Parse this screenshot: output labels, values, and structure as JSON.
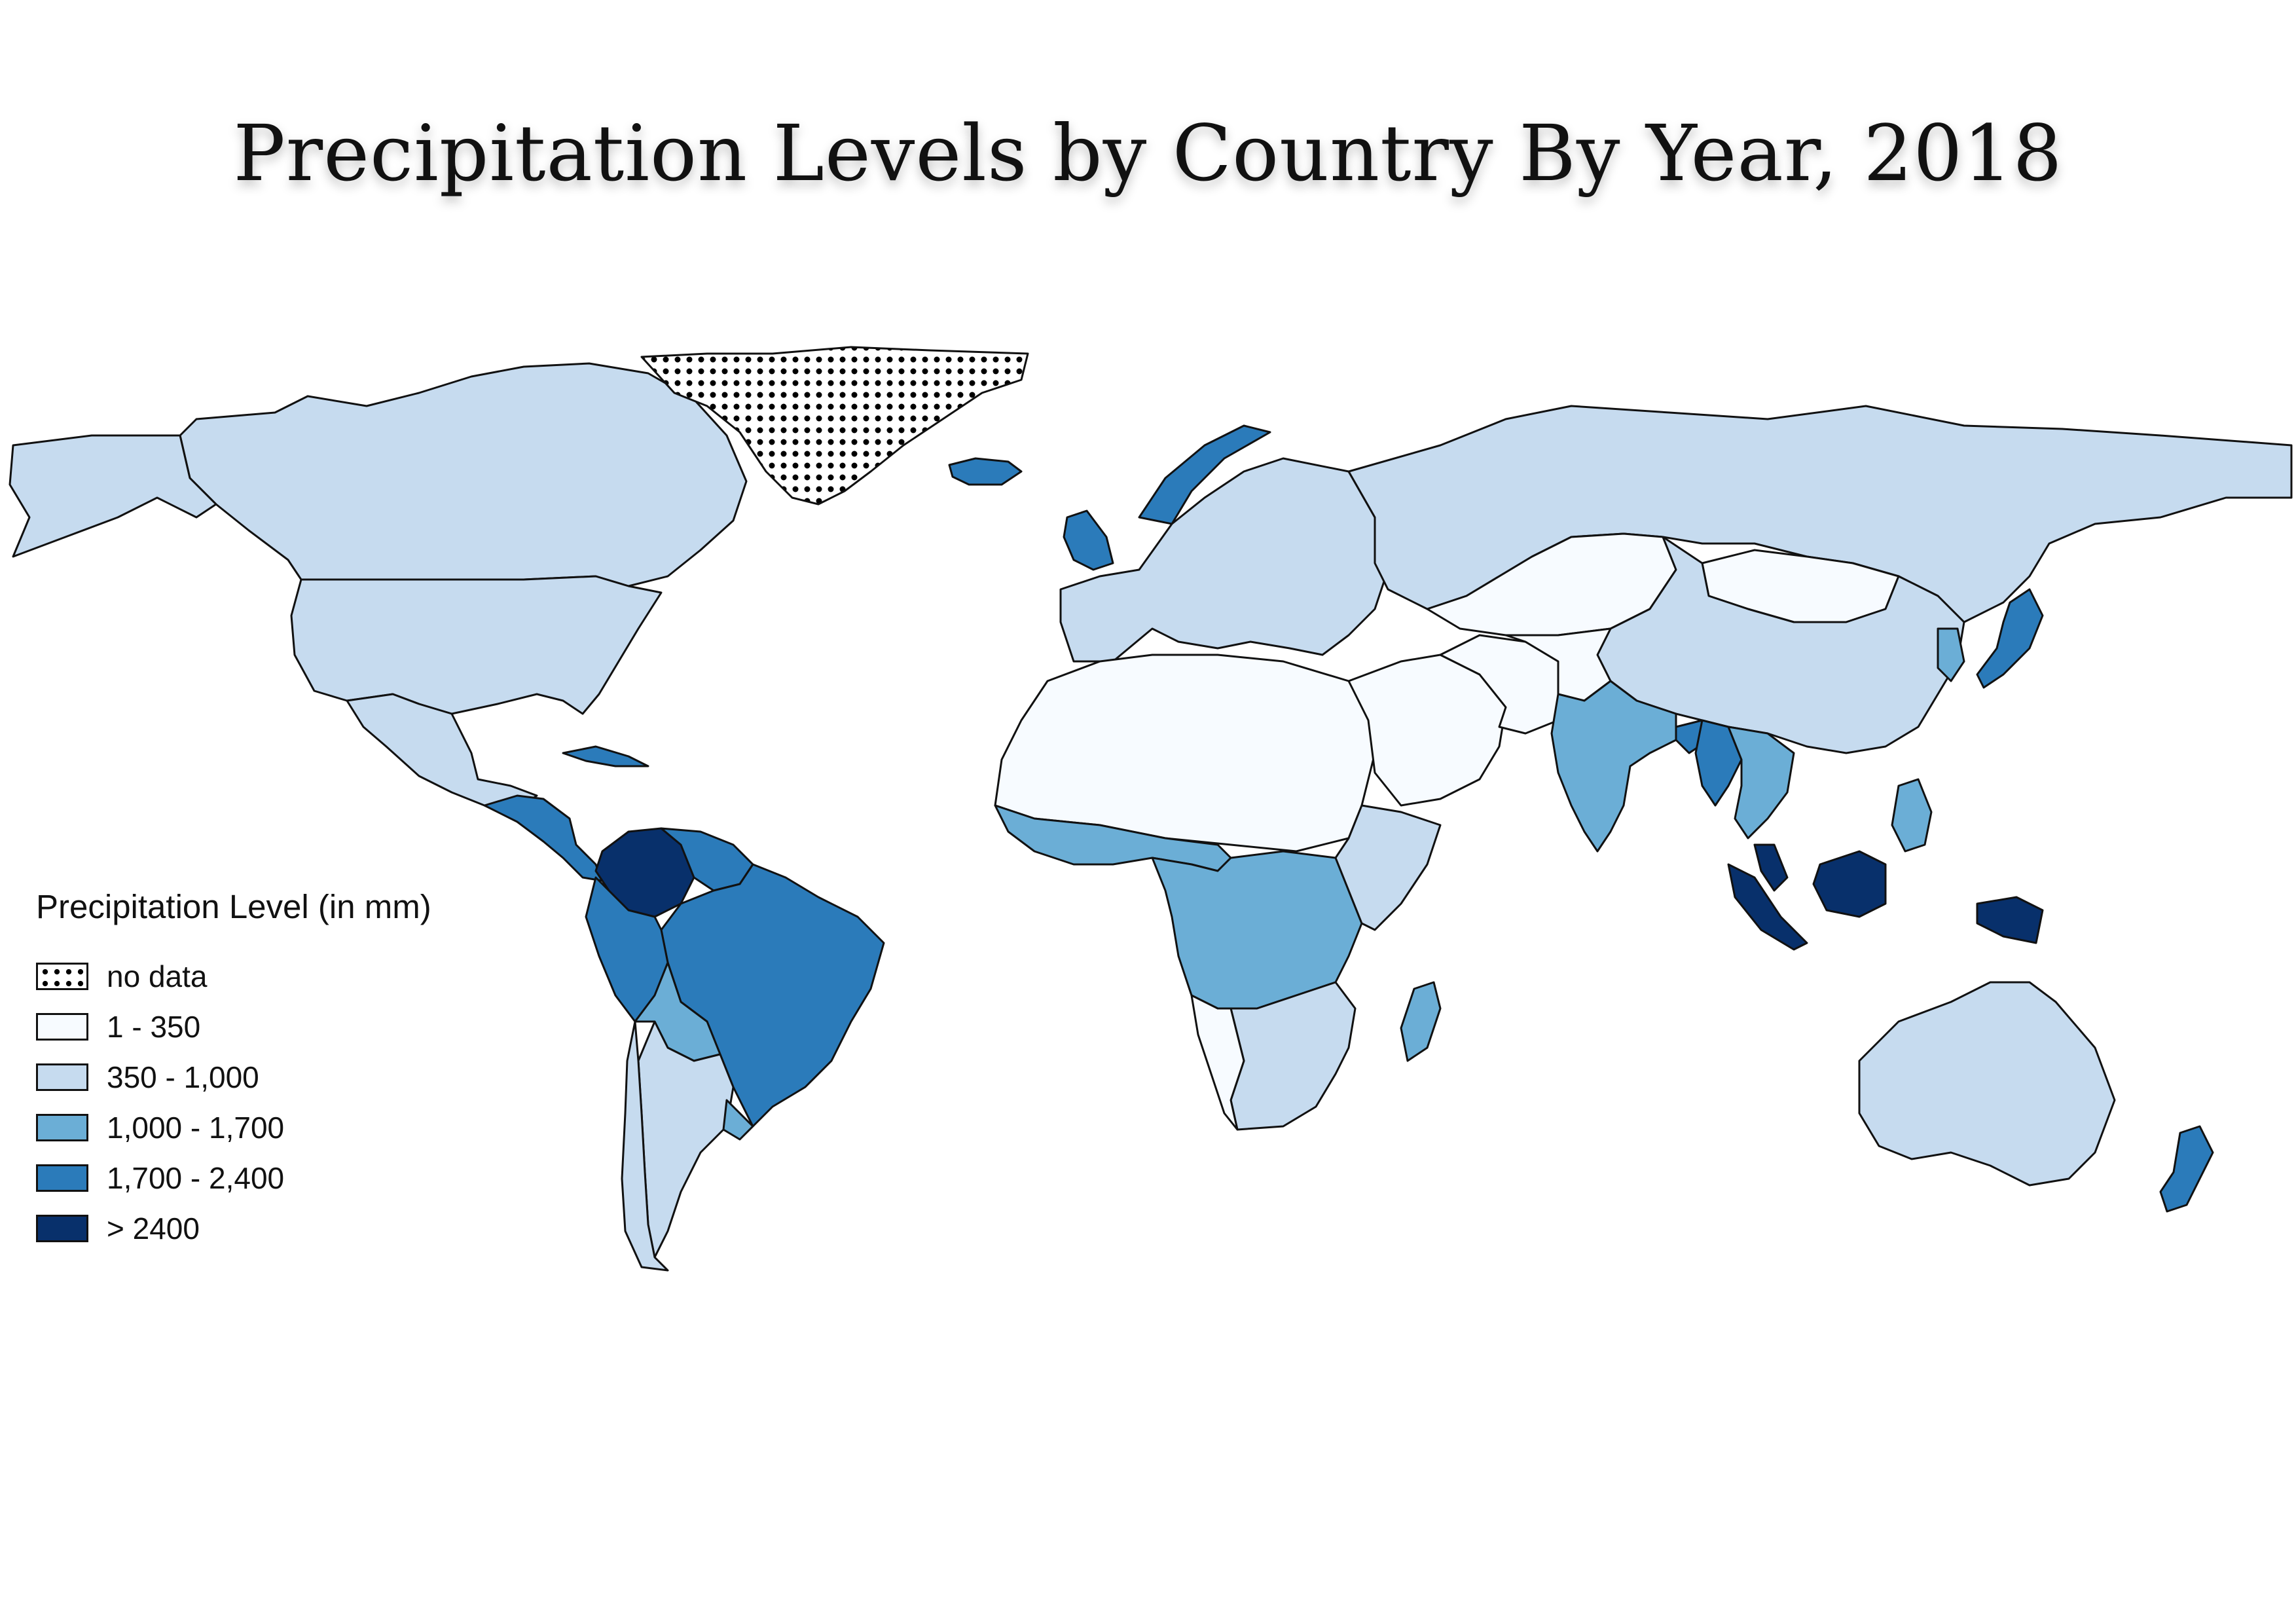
{
  "title": "Precipitation Levels by Country By Year,  2018",
  "legend": {
    "title": "Precipitation Level (in mm)",
    "items": [
      {
        "label": "no data",
        "color": "#ffffff",
        "pattern": "dots"
      },
      {
        "label": "1 - 350",
        "color": "#f7fbff"
      },
      {
        "label": "350 - 1,000",
        "color": "#c6dbef"
      },
      {
        "label": "1,000 - 1,700",
        "color": "#6baed6"
      },
      {
        "label": "1,700 - 2,400",
        "color": "#2b7bba"
      },
      {
        "label": "> 2400",
        "color": "#08306b"
      }
    ]
  },
  "regions": [
    {
      "name": "Canada",
      "class": 2
    },
    {
      "name": "United States",
      "class": 2
    },
    {
      "name": "Alaska",
      "class": 2
    },
    {
      "name": "Mexico",
      "class": 2
    },
    {
      "name": "Central America",
      "class": 4
    },
    {
      "name": "Cuba",
      "class": 4
    },
    {
      "name": "Colombia",
      "class": 5
    },
    {
      "name": "Venezuela",
      "class": 4
    },
    {
      "name": "Brazil",
      "class": 4
    },
    {
      "name": "Peru",
      "class": 4
    },
    {
      "name": "Bolivia",
      "class": 3
    },
    {
      "name": "Argentina",
      "class": 2
    },
    {
      "name": "Chile",
      "class": 2
    },
    {
      "name": "Uruguay",
      "class": 3
    },
    {
      "name": "Greenland",
      "class": 0
    },
    {
      "name": "Iceland",
      "class": 4
    },
    {
      "name": "United Kingdom",
      "class": 4
    },
    {
      "name": "Norway",
      "class": 4
    },
    {
      "name": "Europe",
      "class": 2
    },
    {
      "name": "Russia",
      "class": 2
    },
    {
      "name": "Kazakhstan",
      "class": 1
    },
    {
      "name": "Mongolia",
      "class": 1
    },
    {
      "name": "China",
      "class": 2
    },
    {
      "name": "North Africa",
      "class": 1
    },
    {
      "name": "Middle East",
      "class": 1
    },
    {
      "name": "Central Asia",
      "class": 1
    },
    {
      "name": "Iran",
      "class": 1
    },
    {
      "name": "West Africa",
      "class": 3
    },
    {
      "name": "Central Africa",
      "class": 3
    },
    {
      "name": "East Africa",
      "class": 2
    },
    {
      "name": "Southern Africa",
      "class": 2
    },
    {
      "name": "Namibia",
      "class": 1
    },
    {
      "name": "Madagascar",
      "class": 3
    },
    {
      "name": "India",
      "class": 3
    },
    {
      "name": "Bangladesh",
      "class": 4
    },
    {
      "name": "Myanmar",
      "class": 4
    },
    {
      "name": "Indochina",
      "class": 3
    },
    {
      "name": "Japan",
      "class": 4
    },
    {
      "name": "Korea",
      "class": 3
    },
    {
      "name": "Philippines",
      "class": 3
    },
    {
      "name": "Malaysia",
      "class": 5
    },
    {
      "name": "Sumatra",
      "class": 5
    },
    {
      "name": "Borneo",
      "class": 5
    },
    {
      "name": "New Guinea",
      "class": 5
    },
    {
      "name": "Australia",
      "class": 2
    },
    {
      "name": "New Zealand",
      "class": 4
    }
  ]
}
